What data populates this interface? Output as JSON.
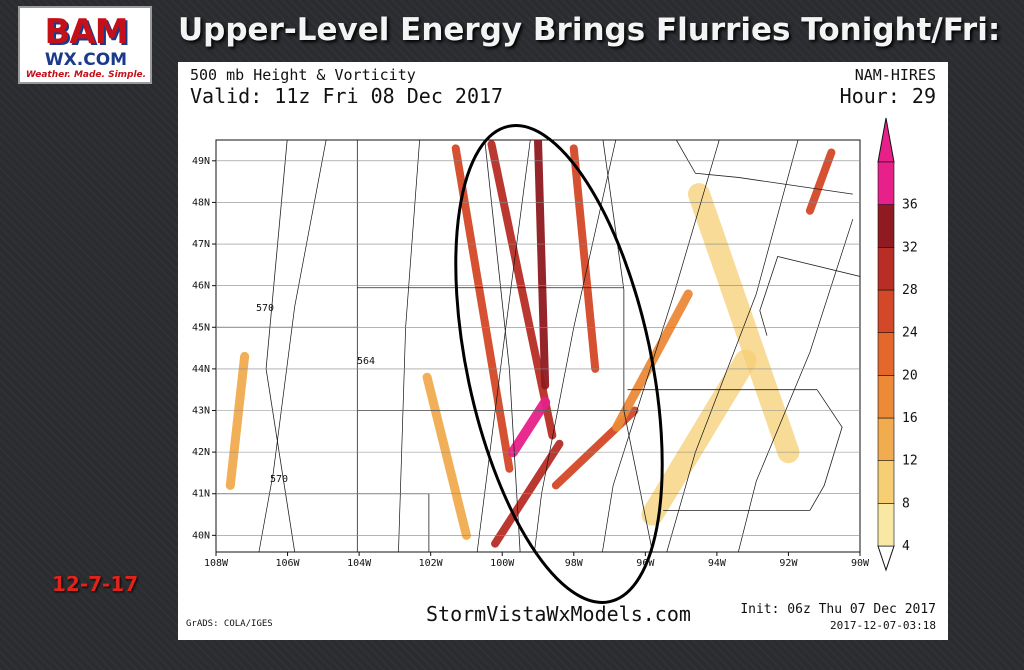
{
  "logo": {
    "line1": "BAM",
    "line2": "WX.COM",
    "tagline": "Weather. Made. Simple."
  },
  "headline": "Upper-Level Energy Brings Flurries Tonight/Fri:",
  "datestamp": "12-7-17",
  "map": {
    "product": "500 mb Height & Vorticity",
    "valid": "Valid: 11z Fri 08 Dec 2017",
    "model": "NAM-HIRES",
    "hour": "Hour: 29",
    "website": "StormVistaWxModels.com",
    "init": "Init: 06z Thu 07 Dec 2017",
    "stamp": "2017-12-07-03:18",
    "grads": "GrADS: COLA/IGES",
    "contour_labels": [
      "570",
      "564",
      "570"
    ]
  },
  "chart_data": {
    "type": "heatmap",
    "title": "500 mb Height & Vorticity",
    "x_ticks": [
      "108W",
      "106W",
      "104W",
      "102W",
      "100W",
      "98W",
      "96W",
      "94W",
      "92W",
      "90W"
    ],
    "y_ticks": [
      "49N",
      "48N",
      "47N",
      "46N",
      "45N",
      "44N",
      "43N",
      "42N",
      "41N",
      "40N"
    ],
    "xlim": [
      -108,
      -90
    ],
    "ylim": [
      39.6,
      49.5
    ],
    "colorbar": {
      "ticks": [
        4,
        8,
        12,
        16,
        20,
        24,
        28,
        32,
        36
      ],
      "colors": [
        "#f9e8a4",
        "#f6cf74",
        "#f1ac4f",
        "#ec8a38",
        "#e4672b",
        "#d34828",
        "#b82e26",
        "#8f1a1f",
        "#e8208a"
      ]
    },
    "highlight": "ellipse around 100W-96W, 40N-49N",
    "vorticity_bands": [
      {
        "from": [
          -101.3,
          49.3
        ],
        "to": [
          -99.8,
          41.6
        ],
        "level": 24
      },
      {
        "from": [
          -100.3,
          49.4
        ],
        "to": [
          -98.6,
          42.4
        ],
        "level": 28
      },
      {
        "from": [
          -99.0,
          49.5
        ],
        "to": [
          -98.8,
          43.6
        ],
        "level": 32
      },
      {
        "from": [
          -98.8,
          43.2
        ],
        "to": [
          -99.7,
          42.0
        ],
        "level": 36
      },
      {
        "from": [
          -98.0,
          49.3
        ],
        "to": [
          -97.4,
          44.0
        ],
        "level": 24
      },
      {
        "from": [
          -98.4,
          42.2
        ],
        "to": [
          -100.2,
          39.8
        ],
        "level": 28
      },
      {
        "from": [
          -96.3,
          43.0
        ],
        "to": [
          -98.5,
          41.2
        ],
        "level": 24
      },
      {
        "from": [
          -94.8,
          45.8
        ],
        "to": [
          -96.8,
          42.6
        ],
        "level": 16
      },
      {
        "from": [
          -102.1,
          43.8
        ],
        "to": [
          -101.0,
          40.0
        ],
        "level": 12
      },
      {
        "from": [
          -90.8,
          49.2
        ],
        "to": [
          -91.4,
          47.8
        ],
        "level": 24
      },
      {
        "from": [
          -107.2,
          44.3
        ],
        "to": [
          -107.6,
          41.2
        ],
        "level": 12
      },
      {
        "from": [
          -94.5,
          48.2
        ],
        "to": [
          -92.0,
          42.0
        ],
        "level": 8
      },
      {
        "from": [
          -93.2,
          44.2
        ],
        "to": [
          -95.8,
          40.5
        ],
        "level": 8
      }
    ]
  }
}
